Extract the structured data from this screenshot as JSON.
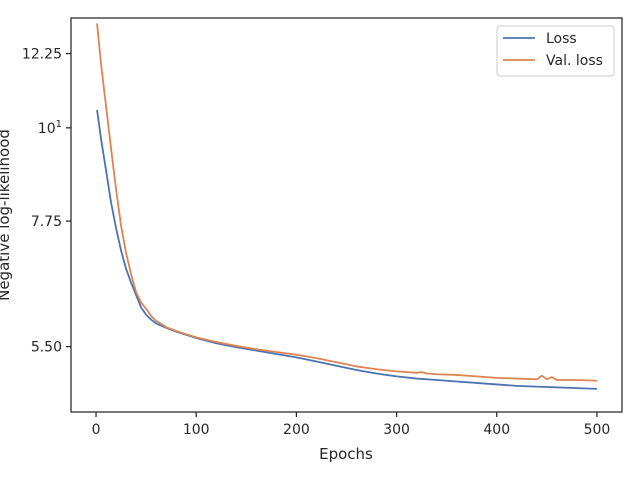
{
  "chart_data": {
    "type": "line",
    "title": "",
    "xlabel": "Epochs",
    "ylabel": "Negative log-likelihood",
    "xlim": [
      -25,
      525
    ],
    "ylim": [
      4.6,
      13.5
    ],
    "yscale": "log",
    "grid": false,
    "legend_position": "top-right",
    "x_ticks": [
      0,
      100,
      200,
      300,
      400,
      500
    ],
    "x_tick_labels": [
      "0",
      "100",
      "200",
      "300",
      "400",
      "500"
    ],
    "y_ticks": [
      12.25,
      10,
      7.75,
      5.5
    ],
    "y_tick_labels": [
      "12.25",
      "10",
      "7.75",
      "5.50"
    ],
    "y_tick_label_superscript": {
      "10": "1"
    },
    "series": [
      {
        "name": "Loss",
        "color": "#4c72b0",
        "x": [
          1,
          5,
          10,
          15,
          20,
          25,
          30,
          35,
          40,
          45,
          50,
          55,
          60,
          70,
          80,
          90,
          100,
          120,
          140,
          160,
          180,
          200,
          220,
          240,
          260,
          280,
          300,
          320,
          340,
          360,
          380,
          400,
          420,
          440,
          460,
          480,
          500
        ],
        "y": [
          10.5,
          9.7,
          8.9,
          8.15,
          7.6,
          7.15,
          6.8,
          6.55,
          6.33,
          6.12,
          6.0,
          5.92,
          5.86,
          5.79,
          5.73,
          5.68,
          5.63,
          5.55,
          5.49,
          5.44,
          5.39,
          5.34,
          5.28,
          5.22,
          5.16,
          5.11,
          5.07,
          5.04,
          5.02,
          5.0,
          4.98,
          4.96,
          4.94,
          4.93,
          4.92,
          4.91,
          4.9
        ]
      },
      {
        "name": "Val. loss",
        "color": "#dd8452",
        "x": [
          1,
          5,
          10,
          15,
          20,
          25,
          30,
          35,
          40,
          45,
          50,
          55,
          60,
          70,
          80,
          90,
          100,
          120,
          140,
          160,
          180,
          200,
          220,
          240,
          260,
          280,
          300,
          320,
          325,
          330,
          340,
          360,
          380,
          400,
          420,
          440,
          445,
          450,
          455,
          460,
          480,
          500
        ],
        "y": [
          13.3,
          11.9,
          10.6,
          9.45,
          8.45,
          7.65,
          7.1,
          6.7,
          6.38,
          6.2,
          6.1,
          5.98,
          5.9,
          5.8,
          5.74,
          5.69,
          5.64,
          5.57,
          5.51,
          5.46,
          5.42,
          5.38,
          5.33,
          5.27,
          5.21,
          5.17,
          5.14,
          5.12,
          5.13,
          5.11,
          5.1,
          5.09,
          5.07,
          5.05,
          5.04,
          5.03,
          5.08,
          5.03,
          5.06,
          5.02,
          5.02,
          5.01
        ]
      }
    ]
  }
}
